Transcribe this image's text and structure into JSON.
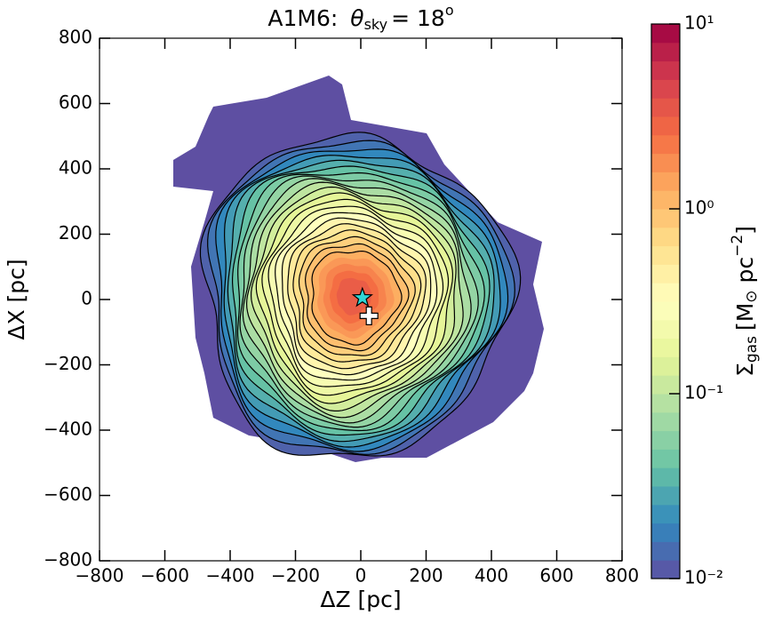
{
  "chart_data": {
    "type": "contour",
    "title": {
      "prefix": "A1M6:",
      "symbol": "θ",
      "subscript": "sky",
      "equals": "= 18",
      "superscript": "o"
    },
    "x_label": "ΔZ [pc]",
    "y_label": "ΔX [pc]",
    "xlim": [
      -800,
      800
    ],
    "ylim": [
      -800,
      800
    ],
    "xticks": [
      {
        "value": -800,
        "label": "−800"
      },
      {
        "value": -600,
        "label": "−600"
      },
      {
        "value": -400,
        "label": "−400"
      },
      {
        "value": -200,
        "label": "−200"
      },
      0,
      200,
      400,
      600,
      800
    ],
    "yticks": [
      {
        "value": -800,
        "label": "−800"
      },
      {
        "value": -600,
        "label": "−600"
      },
      {
        "value": -400,
        "label": "−400"
      },
      {
        "value": -200,
        "label": "−200"
      },
      0,
      200,
      400,
      600,
      800
    ],
    "colorbar": {
      "label": {
        "symbol": "Σ",
        "subscript": "gas",
        "open": "[M",
        "sun": "⊙",
        "unit": " pc",
        "exponent": "−2",
        "close": "]"
      },
      "clim": [
        0.01,
        10
      ],
      "log": true,
      "colormap": "Spectral_r",
      "levels": 30,
      "ticks": [
        {
          "value": 0.01,
          "label": "10⁻²"
        },
        {
          "value": 0.1,
          "label": "10⁻¹"
        },
        {
          "value": 1,
          "label": "10⁰"
        },
        {
          "value": 10,
          "label": "10¹"
        }
      ]
    },
    "markers": [
      {
        "x": 5,
        "y": 5,
        "shape": "star",
        "color": "#2fd6d6"
      },
      {
        "x": 25,
        "y": -50,
        "shape": "cross",
        "color": "#ffffff"
      }
    ]
  }
}
